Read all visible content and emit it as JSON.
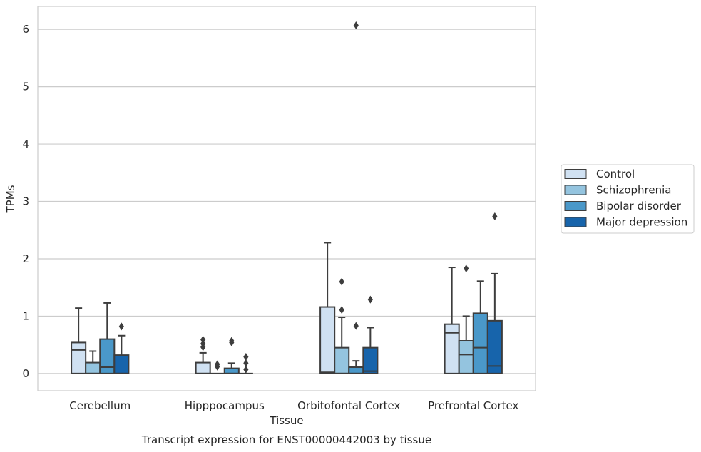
{
  "chart_data": {
    "type": "box",
    "title": "",
    "caption": "Transcript expression for ENST00000442003 by tissue",
    "xlabel": "Tissue",
    "ylabel": "TPMs",
    "ylim": [
      -0.3,
      6.4
    ],
    "yticks": [
      0,
      1,
      2,
      3,
      4,
      5,
      6
    ],
    "grid": "horizontal",
    "legend_position": "right",
    "categories": [
      "Cerebellum",
      "Hipppocampus",
      "Orbitofontal Cortex",
      "Prefrontal Cortex"
    ],
    "series": [
      {
        "name": "Control",
        "color": "#d0e1f2",
        "boxes": [
          {
            "q1": 0,
            "median": 0.41,
            "q3": 0.54,
            "whislo": 0,
            "whishi": 1.14,
            "fliers": []
          },
          {
            "q1": 0,
            "median": 0,
            "q3": 0.19,
            "whislo": 0,
            "whishi": 0.36,
            "fliers": [
              0.46,
              0.52,
              0.59
            ]
          },
          {
            "q1": 0,
            "median": 0.02,
            "q3": 1.16,
            "whislo": 0,
            "whishi": 2.28,
            "fliers": []
          },
          {
            "q1": 0,
            "median": 0.71,
            "q3": 0.86,
            "whislo": 0,
            "whishi": 1.85,
            "fliers": []
          }
        ]
      },
      {
        "name": "Schizophrenia",
        "color": "#94c4df",
        "boxes": [
          {
            "q1": 0,
            "median": 0,
            "q3": 0.19,
            "whislo": 0,
            "whishi": 0.39,
            "fliers": []
          },
          {
            "q1": 0,
            "median": 0,
            "q3": 0,
            "whislo": 0,
            "whishi": 0,
            "fliers": [
              0.12,
              0.16
            ]
          },
          {
            "q1": 0,
            "median": 0,
            "q3": 0.45,
            "whislo": 0,
            "whishi": 0.98,
            "fliers": [
              1.11,
              1.6
            ]
          },
          {
            "q1": 0,
            "median": 0.33,
            "q3": 0.57,
            "whislo": 0,
            "whishi": 1.0,
            "fliers": [
              1.83
            ]
          }
        ]
      },
      {
        "name": "Bipolar disorder",
        "color": "#4a98c9",
        "boxes": [
          {
            "q1": 0,
            "median": 0.11,
            "q3": 0.6,
            "whislo": 0,
            "whishi": 1.23,
            "fliers": []
          },
          {
            "q1": 0,
            "median": 0,
            "q3": 0.09,
            "whislo": 0,
            "whishi": 0.18,
            "fliers": [
              0.54,
              0.57
            ]
          },
          {
            "q1": 0,
            "median": 0,
            "q3": 0.11,
            "whislo": 0,
            "whishi": 0.22,
            "fliers": [
              0.83,
              6.07
            ]
          },
          {
            "q1": 0,
            "median": 0.45,
            "q3": 1.05,
            "whislo": 0,
            "whishi": 1.61,
            "fliers": []
          }
        ]
      },
      {
        "name": "Major depression",
        "color": "#1764ab",
        "boxes": [
          {
            "q1": 0,
            "median": 0,
            "q3": 0.32,
            "whislo": 0,
            "whishi": 0.66,
            "fliers": [
              0.82
            ]
          },
          {
            "q1": 0,
            "median": 0,
            "q3": 0,
            "whislo": 0,
            "whishi": 0,
            "fliers": [
              0.07,
              0.18,
              0.29
            ]
          },
          {
            "q1": 0,
            "median": 0.04,
            "q3": 0.45,
            "whislo": 0,
            "whishi": 0.8,
            "fliers": [
              1.29
            ]
          },
          {
            "q1": 0,
            "median": 0.13,
            "q3": 0.92,
            "whislo": 0,
            "whishi": 1.74,
            "fliers": [
              2.74
            ]
          }
        ]
      }
    ]
  }
}
